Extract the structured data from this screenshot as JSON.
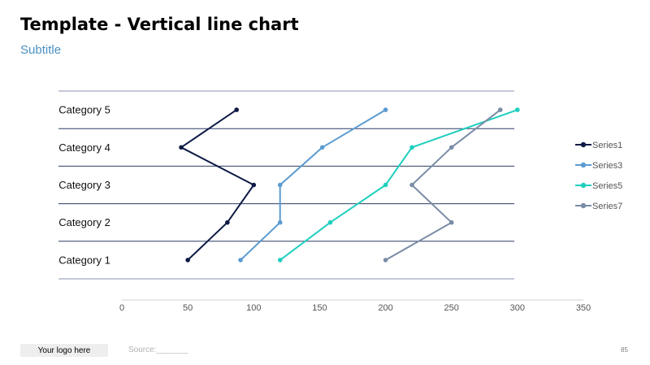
{
  "header": {
    "title": "Template - Vertical line chart",
    "subtitle": "Subtitle"
  },
  "footer": {
    "logo_label": "Your logo here",
    "source_label": "Source:_______",
    "page_number": "85"
  },
  "chart_data": {
    "type": "line",
    "orientation": "vertical",
    "categories": [
      "Category 1",
      "Category 2",
      "Category 3",
      "Category 4",
      "Category 5"
    ],
    "xlim": [
      0,
      350
    ],
    "x_ticks": [
      0,
      50,
      100,
      150,
      200,
      250,
      300,
      350
    ],
    "grid": "horizontal",
    "legend_position": "right",
    "series": [
      {
        "name": "Series1",
        "color": "#0e1a45",
        "values": [
          50,
          80,
          100,
          45,
          87
        ]
      },
      {
        "name": "Series3",
        "color": "#5b9bd1",
        "values": [
          90,
          120,
          120,
          152,
          200
        ]
      },
      {
        "name": "Series5",
        "color": "#1fcfbf",
        "values": [
          120,
          158,
          200,
          220,
          300
        ]
      },
      {
        "name": "Series7",
        "color": "#7a8ca6",
        "values": [
          200,
          250,
          220,
          250,
          287
        ]
      }
    ]
  }
}
